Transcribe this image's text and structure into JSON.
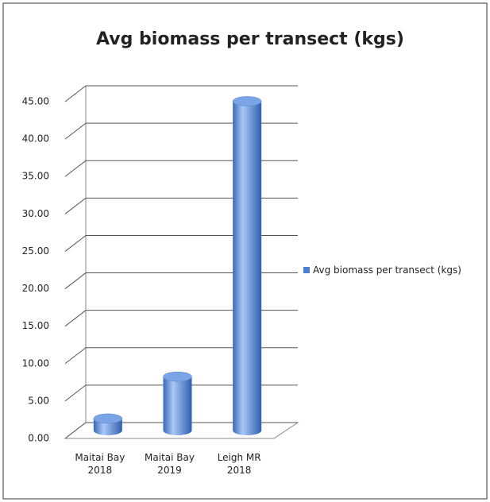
{
  "chart_data": {
    "type": "bar",
    "title": "Avg biomass per transect (kgs)",
    "categories": [
      "Maitai Bay 2018",
      "Maitai Bay 2019",
      "Leigh MR 2018"
    ],
    "series": [
      {
        "name": "Avg biomass per transect (kgs)",
        "color": "#4a7fd4",
        "values": [
          1.6,
          7.2,
          44.0
        ]
      }
    ],
    "ylim": [
      0,
      45
    ],
    "yticks": [
      {
        "value": 0,
        "label": "0.00"
      },
      {
        "value": 5,
        "label": "5.00"
      },
      {
        "value": 10,
        "label": "10.00"
      },
      {
        "value": 15,
        "label": "15.00"
      },
      {
        "value": 20,
        "label": "20.00"
      },
      {
        "value": 25,
        "label": "25.00"
      },
      {
        "value": 30,
        "label": "30.00"
      },
      {
        "value": 35,
        "label": "35.00"
      },
      {
        "value": 40,
        "label": "40.00"
      },
      {
        "value": 45,
        "label": "45.00"
      }
    ],
    "grid": true,
    "legend": "right"
  }
}
